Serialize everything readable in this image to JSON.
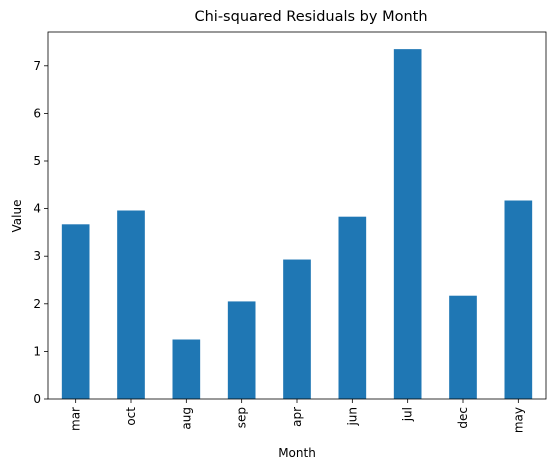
{
  "chart_data": {
    "type": "bar",
    "title": "Chi-squared Residuals by Month",
    "xlabel": "Month",
    "ylabel": "Value",
    "categories": [
      "mar",
      "oct",
      "aug",
      "sep",
      "apr",
      "jun",
      "jul",
      "dec",
      "may"
    ],
    "values": [
      3.67,
      3.96,
      1.25,
      2.05,
      2.93,
      3.83,
      7.35,
      2.17,
      4.17
    ],
    "ylim": [
      0,
      7.71
    ],
    "yticks": [
      0,
      1,
      2,
      3,
      4,
      5,
      6,
      7
    ],
    "grid": false,
    "legend": "none",
    "bar_color": "#1f77b4"
  }
}
